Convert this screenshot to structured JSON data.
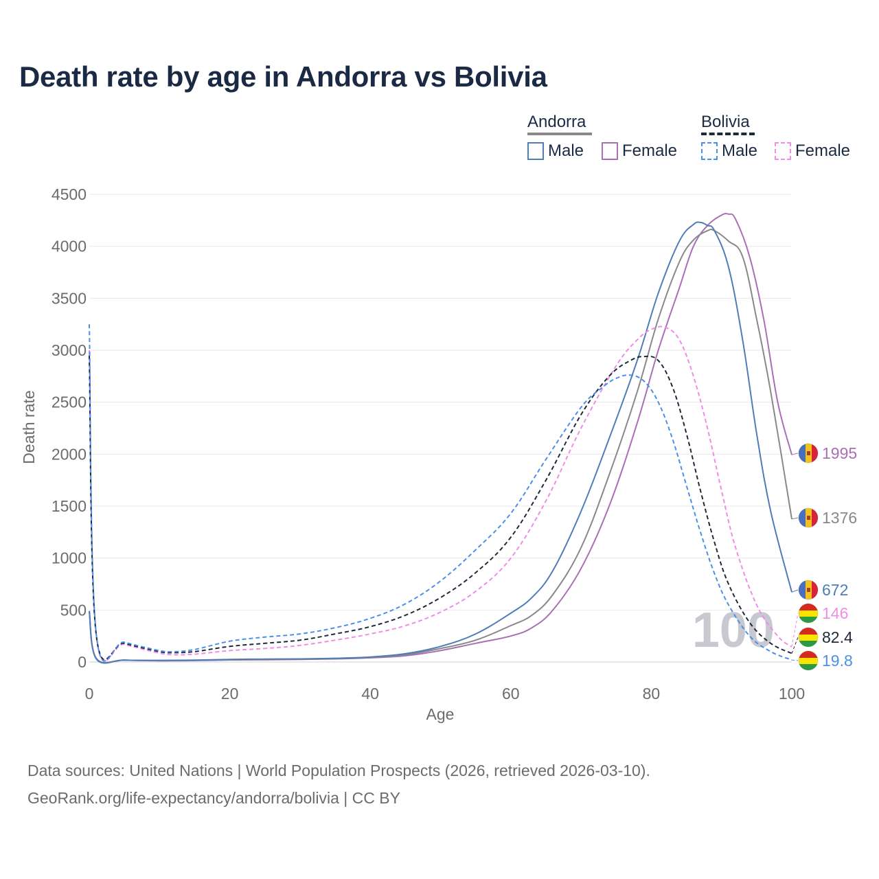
{
  "title": "Death rate by age in Andorra vs Bolivia",
  "legend": {
    "groups": [
      {
        "name": "Andorra",
        "items": [
          {
            "label": "Male",
            "color": "#4f7cb7",
            "style": "solid"
          },
          {
            "label": "Female",
            "color": "#a86fb4",
            "style": "solid"
          }
        ]
      },
      {
        "name": "Bolivia",
        "items": [
          {
            "label": "Male",
            "color": "#4a90e8",
            "style": "dashed"
          },
          {
            "label": "Female",
            "color": "#f08be8",
            "style": "dashed"
          }
        ]
      }
    ]
  },
  "footer": {
    "line1": "Data sources: United Nations | World Population Prospects (2026, retrieved 2026-03-10).",
    "line2": "GeoRank.org/life-expectancy/andorra/bolivia | CC BY"
  },
  "chart_data": {
    "type": "line",
    "title": "Death rate by age in Andorra vs Bolivia",
    "xlabel": "Age",
    "ylabel": "Death rate",
    "xlim": [
      0,
      100
    ],
    "ylim": [
      0,
      4500
    ],
    "xticks": [
      0,
      20,
      40,
      60,
      80,
      100
    ],
    "yticks": [
      0,
      500,
      1000,
      1500,
      2000,
      2500,
      3000,
      3500,
      4000,
      4500
    ],
    "watermark": "100",
    "series": [
      {
        "name": "Andorra Female",
        "color": "#a86fb4",
        "dash": false,
        "end_label": "1995",
        "x": [
          0,
          1,
          5,
          10,
          15,
          20,
          25,
          30,
          35,
          40,
          45,
          50,
          55,
          60,
          63,
          66,
          70,
          74,
          78,
          81,
          84,
          86,
          88,
          90,
          91,
          92,
          94,
          96,
          98,
          100
        ],
        "y": [
          490,
          35,
          18,
          12,
          14,
          20,
          22,
          25,
          30,
          40,
          60,
          110,
          180,
          250,
          330,
          500,
          900,
          1500,
          2300,
          3000,
          3600,
          4000,
          4200,
          4300,
          4310,
          4260,
          3900,
          3300,
          2500,
          1995
        ]
      },
      {
        "name": "Andorra Total",
        "color": "#888888",
        "dash": false,
        "end_label": "1376",
        "x": [
          0,
          1,
          5,
          10,
          15,
          20,
          25,
          30,
          35,
          40,
          45,
          50,
          55,
          60,
          63,
          66,
          70,
          74,
          78,
          81,
          84,
          86,
          88,
          89,
          91,
          93,
          95,
          97,
          100
        ],
        "y": [
          490,
          35,
          18,
          14,
          16,
          22,
          25,
          28,
          34,
          45,
          70,
          130,
          210,
          350,
          450,
          650,
          1100,
          1800,
          2600,
          3300,
          3850,
          4060,
          4150,
          4150,
          4050,
          3900,
          3300,
          2600,
          1376
        ]
      },
      {
        "name": "Andorra Male",
        "color": "#4f7cb7",
        "dash": false,
        "end_label": "672",
        "x": [
          0,
          1,
          5,
          10,
          15,
          20,
          25,
          30,
          35,
          40,
          45,
          50,
          55,
          60,
          63,
          66,
          70,
          74,
          78,
          81,
          84,
          86,
          87,
          88,
          89,
          91,
          93,
          95,
          97,
          100
        ],
        "y": [
          490,
          30,
          18,
          16,
          18,
          25,
          28,
          30,
          36,
          48,
          80,
          150,
          270,
          470,
          620,
          880,
          1450,
          2150,
          2900,
          3550,
          4050,
          4210,
          4230,
          4200,
          4150,
          3800,
          3100,
          2200,
          1450,
          672
        ]
      },
      {
        "name": "Bolivia Female",
        "color": "#f08be8",
        "dash": true,
        "end_label": "146",
        "x": [
          0,
          1,
          5,
          10,
          12,
          15,
          20,
          25,
          30,
          35,
          40,
          45,
          50,
          55,
          60,
          65,
          70,
          75,
          78,
          80,
          82,
          84,
          86,
          88,
          90,
          92,
          95,
          98,
          100
        ],
        "y": [
          3000,
          250,
          170,
          85,
          70,
          75,
          110,
          130,
          160,
          210,
          270,
          350,
          480,
          680,
          1000,
          1550,
          2250,
          2850,
          3100,
          3200,
          3220,
          3100,
          2750,
          2250,
          1650,
          1100,
          550,
          250,
          146
        ]
      },
      {
        "name": "Bolivia Total",
        "color": "#1e2a3a",
        "dash": true,
        "end_label": "82.4",
        "x": [
          0,
          1,
          5,
          10,
          12,
          15,
          20,
          25,
          30,
          35,
          40,
          45,
          50,
          55,
          60,
          65,
          70,
          74,
          77,
          79,
          81,
          83,
          85,
          87,
          89,
          91,
          94,
          97,
          100
        ],
        "y": [
          2950,
          260,
          180,
          100,
          90,
          100,
          150,
          180,
          210,
          270,
          340,
          450,
          620,
          860,
          1200,
          1750,
          2380,
          2750,
          2900,
          2940,
          2900,
          2650,
          2200,
          1650,
          1150,
          750,
          380,
          180,
          82.4
        ]
      },
      {
        "name": "Bolivia Male",
        "color": "#4a90e8",
        "dash": true,
        "end_label": "19.8",
        "x": [
          0,
          1,
          5,
          10,
          12,
          15,
          20,
          25,
          30,
          35,
          40,
          45,
          50,
          55,
          60,
          65,
          70,
          73,
          75,
          77,
          79,
          81,
          83,
          85,
          87,
          89,
          91,
          94,
          97,
          100
        ],
        "y": [
          3250,
          270,
          190,
          110,
          100,
          120,
          200,
          240,
          270,
          330,
          420,
          560,
          780,
          1080,
          1430,
          1950,
          2450,
          2640,
          2730,
          2760,
          2700,
          2500,
          2150,
          1700,
          1250,
          850,
          550,
          250,
          100,
          19.8
        ]
      }
    ]
  }
}
